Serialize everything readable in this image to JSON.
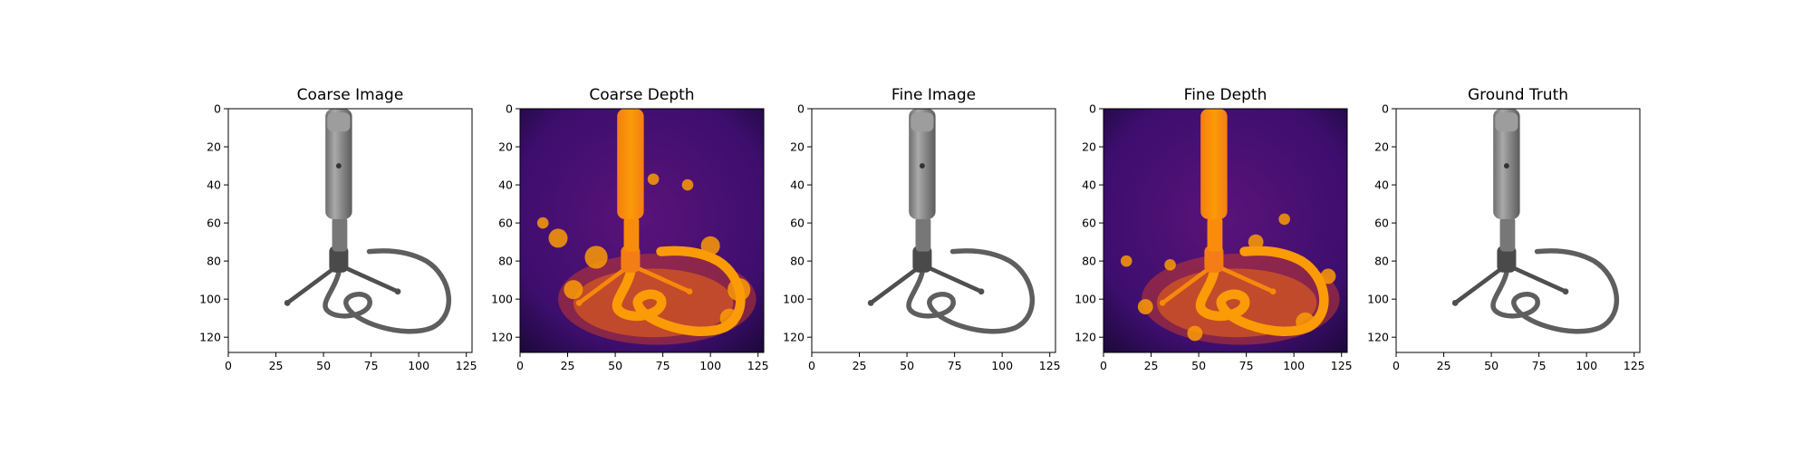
{
  "chart_data": [
    {
      "type": "image",
      "title": "Coarse Image",
      "render": "rgb",
      "xlim": [
        0,
        128
      ],
      "ylim": [
        128,
        0
      ],
      "xticks": [
        0,
        25,
        50,
        75,
        100,
        125
      ],
      "yticks": [
        0,
        20,
        40,
        60,
        80,
        100,
        120
      ],
      "grid": false
    },
    {
      "type": "heatmap",
      "title": "Coarse Depth",
      "render": "depth",
      "colormap": "inferno",
      "xlim": [
        0,
        128
      ],
      "ylim": [
        128,
        0
      ],
      "xticks": [
        0,
        25,
        50,
        75,
        100,
        125
      ],
      "yticks": [
        0,
        20,
        40,
        60,
        80,
        100,
        120
      ],
      "grid": false
    },
    {
      "type": "image",
      "title": "Fine Image",
      "render": "rgb",
      "xlim": [
        0,
        128
      ],
      "ylim": [
        128,
        0
      ],
      "xticks": [
        0,
        25,
        50,
        75,
        100,
        125
      ],
      "yticks": [
        0,
        20,
        40,
        60,
        80,
        100,
        120
      ],
      "grid": false
    },
    {
      "type": "heatmap",
      "title": "Fine Depth",
      "render": "depth",
      "colormap": "inferno",
      "xlim": [
        0,
        128
      ],
      "ylim": [
        128,
        0
      ],
      "xticks": [
        0,
        25,
        50,
        75,
        100,
        125
      ],
      "yticks": [
        0,
        20,
        40,
        60,
        80,
        100,
        120
      ],
      "grid": false
    },
    {
      "type": "image",
      "title": "Ground Truth",
      "render": "rgb",
      "xlim": [
        0,
        128
      ],
      "ylim": [
        128,
        0
      ],
      "xticks": [
        0,
        25,
        50,
        75,
        100,
        125
      ],
      "yticks": [
        0,
        20,
        40,
        60,
        80,
        100,
        120
      ],
      "grid": false
    }
  ],
  "colors": {
    "background": "#ffffff",
    "axis": "#000000",
    "depth_background": "#3d0e6e",
    "depth_foreground": "#f98c0a",
    "microphone_body": "#8a8a8a",
    "microphone_cable": "#5a5a5a"
  }
}
